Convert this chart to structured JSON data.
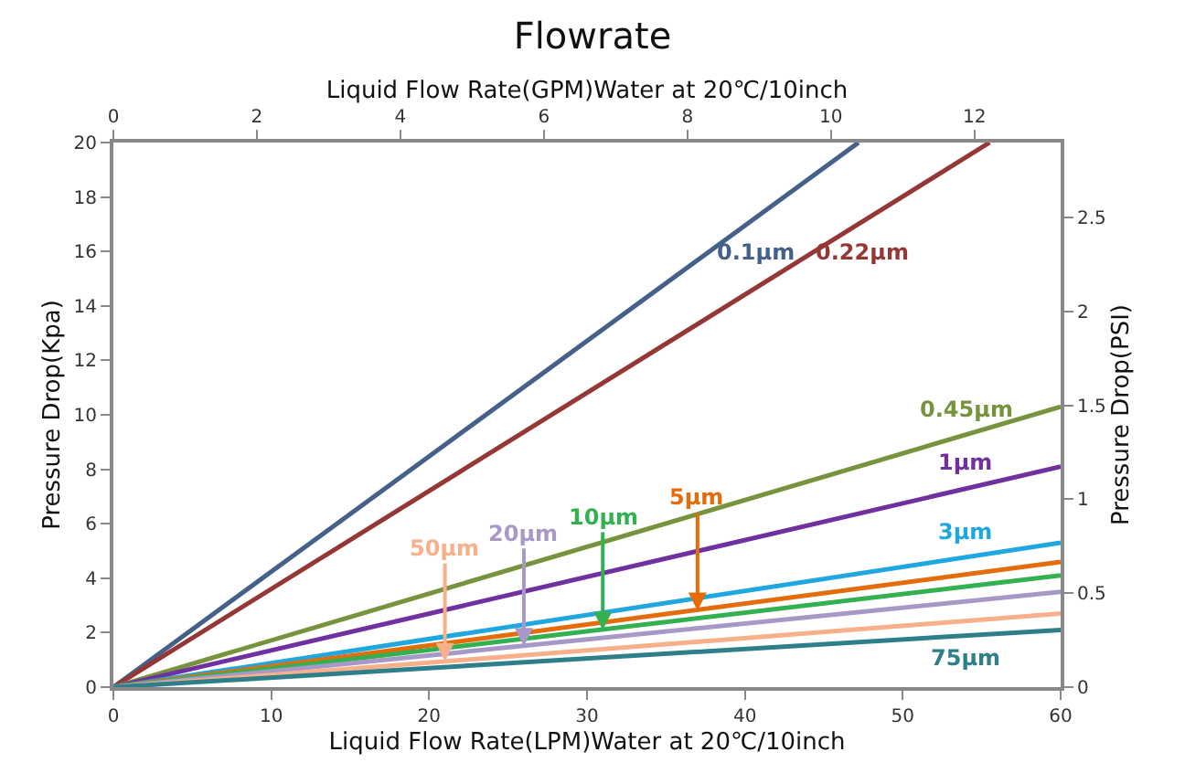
{
  "chart_data": {
    "type": "line",
    "title": "Flowrate",
    "xlabel": "Liquid Flow Rate(LPM)Water at 20℃/10inch",
    "ylabel": "Pressure Drop(Kpa)",
    "y2label": "Pressure Drop(PSI)",
    "x2label": "Liquid Flow Rate(GPM)Water at 20℃/10inch",
    "xlim": [
      0,
      60
    ],
    "xticks": [
      0,
      10,
      20,
      30,
      40,
      50,
      60
    ],
    "ylim": [
      0,
      20
    ],
    "yticks": [
      0,
      2,
      4,
      6,
      8,
      10,
      12,
      14,
      16,
      18,
      20
    ],
    "y2lim": [
      0,
      2.9
    ],
    "y2ticks": [
      0,
      0.5,
      1,
      1.5,
      2,
      2.5
    ],
    "x2lim": [
      0,
      13.2
    ],
    "x2ticks": [
      0,
      2,
      4,
      6,
      8,
      10,
      12
    ],
    "legend": false,
    "marker": "none",
    "line_style": "solid",
    "series": [
      {
        "name": "0.1μm",
        "color": "#44618a",
        "x": [
          0,
          47.2
        ],
        "values": [
          0,
          20
        ]
      },
      {
        "name": "0.22μm",
        "color": "#953735",
        "x": [
          0,
          55.5
        ],
        "values": [
          0,
          20
        ]
      },
      {
        "name": "0.45μm",
        "color": "#77933c",
        "x": [
          0,
          60
        ],
        "values": [
          0,
          10.3
        ]
      },
      {
        "name": "1μm",
        "color": "#7030a0",
        "x": [
          0,
          60
        ],
        "values": [
          0,
          8.1
        ]
      },
      {
        "name": "3μm",
        "color": "#1fa7e0",
        "x": [
          0,
          60
        ],
        "values": [
          0,
          5.3
        ]
      },
      {
        "color": "#e46c0a",
        "x": [
          0,
          60
        ],
        "values": [
          0,
          4.6
        ]
      },
      {
        "color": "#33b050",
        "x": [
          0,
          60
        ],
        "values": [
          0,
          4.1
        ]
      },
      {
        "color": "#a898c8",
        "x": [
          0,
          60
        ],
        "values": [
          0,
          3.5
        ]
      },
      {
        "color": "#f7b08a",
        "x": [
          0,
          60
        ],
        "values": [
          0,
          2.7
        ]
      },
      {
        "name": "75μm",
        "color": "#2e7f8a",
        "x": [
          0,
          60
        ],
        "values": [
          0,
          2.1
        ]
      }
    ],
    "annotations": [
      {
        "text": "50μm",
        "x": 21,
        "y": 0.95
      },
      {
        "text": "20μm",
        "x": 26,
        "y": 1.5
      },
      {
        "text": "10μm",
        "x": 31,
        "y": 2.1
      },
      {
        "text": "5μm",
        "x": 37,
        "y": 2.8
      }
    ]
  }
}
